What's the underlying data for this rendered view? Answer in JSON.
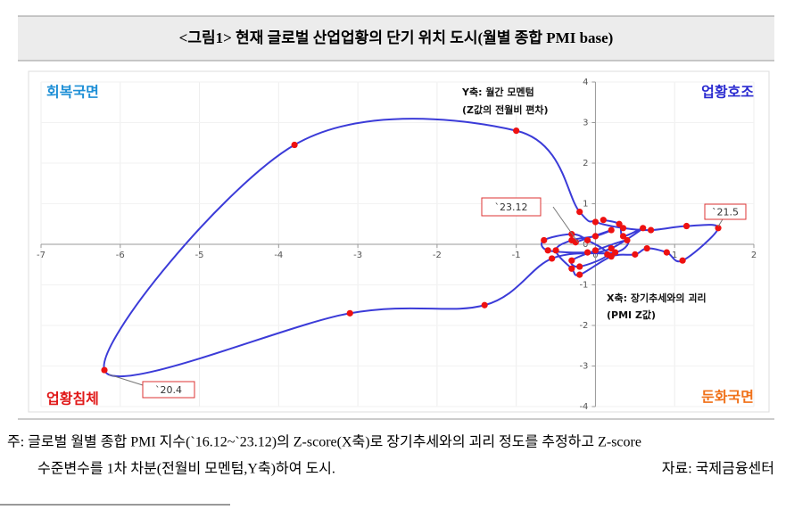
{
  "chart_data": {
    "type": "line",
    "title": "<그림1> 현재 글로벌 산업업황의 단기 위치 도시(월별 종합 PMI base)",
    "x": [
      0.1,
      0.3,
      0.35,
      0.6,
      0.2,
      -0.1,
      -0.6,
      -0.65,
      -0.3,
      -0.1,
      0.15,
      -0.2,
      -0.3,
      0.0,
      0.4,
      0.25,
      -0.55,
      -1.4,
      -3.1,
      -6.2,
      -3.8,
      -1.0,
      -0.2,
      0.0,
      0.35,
      0.7,
      1.15,
      1.55,
      1.1,
      0.9,
      0.65,
      0.5,
      0.2,
      -0.2,
      -0.3,
      -0.5,
      -0.3,
      0.0,
      0.2,
      -0.25
    ],
    "series": [
      {
        "color": "#3b3bd8",
        "marker_color": "#ee1111",
        "values": [
          0.6,
          0.5,
          0.2,
          0.4,
          -0.1,
          -0.2,
          -0.15,
          0.1,
          0.25,
          0.1,
          -0.25,
          -0.55,
          -0.4,
          -0.15,
          0.1,
          -0.2,
          -0.35,
          -1.5,
          -1.7,
          -3.1,
          2.45,
          2.8,
          0.8,
          0.55,
          0.4,
          0.35,
          0.45,
          0.4,
          -0.4,
          -0.2,
          -0.1,
          -0.25,
          -0.3,
          -0.75,
          -0.6,
          -0.15,
          0.1,
          0.2,
          0.35,
          0.05
        ]
      }
    ],
    "xlim": [
      -7,
      2
    ],
    "ylim": [
      -4,
      4
    ],
    "xticks": [
      -7,
      -6,
      -5,
      -4,
      -3,
      -2,
      -1,
      0,
      1,
      2
    ],
    "yticks": [
      -4,
      -3,
      -2,
      -1,
      0,
      1,
      2,
      3,
      4
    ],
    "grid": true,
    "quadrants": [
      "회복국면",
      "업황호조",
      "업황침체",
      "둔화국면"
    ],
    "quadrant_colors": [
      "#1e8fd6",
      "#2a2ad0",
      "#e01818",
      "#f07018"
    ],
    "annotations": [
      "Y축: 월간 모멘텀",
      "(Z값의 전월비 편차)",
      "X축: 장기추세와의 괴리",
      "(PMI Z값)"
    ],
    "callouts": [
      "`23.12",
      "`20.4",
      "`21.5"
    ]
  },
  "footer": {
    "note": [
      "주: 글로벌 월별 종합 PMI 지수(`16.12~`23.12)의 Z-score(X축)로 장기추세와의 괴리 정도를 추정하고 Z-score",
      "수준변수를 1차 차분(전월비 모멘텀,Y축)하여 도시."
    ],
    "source": "자료: 국제금융센터"
  }
}
